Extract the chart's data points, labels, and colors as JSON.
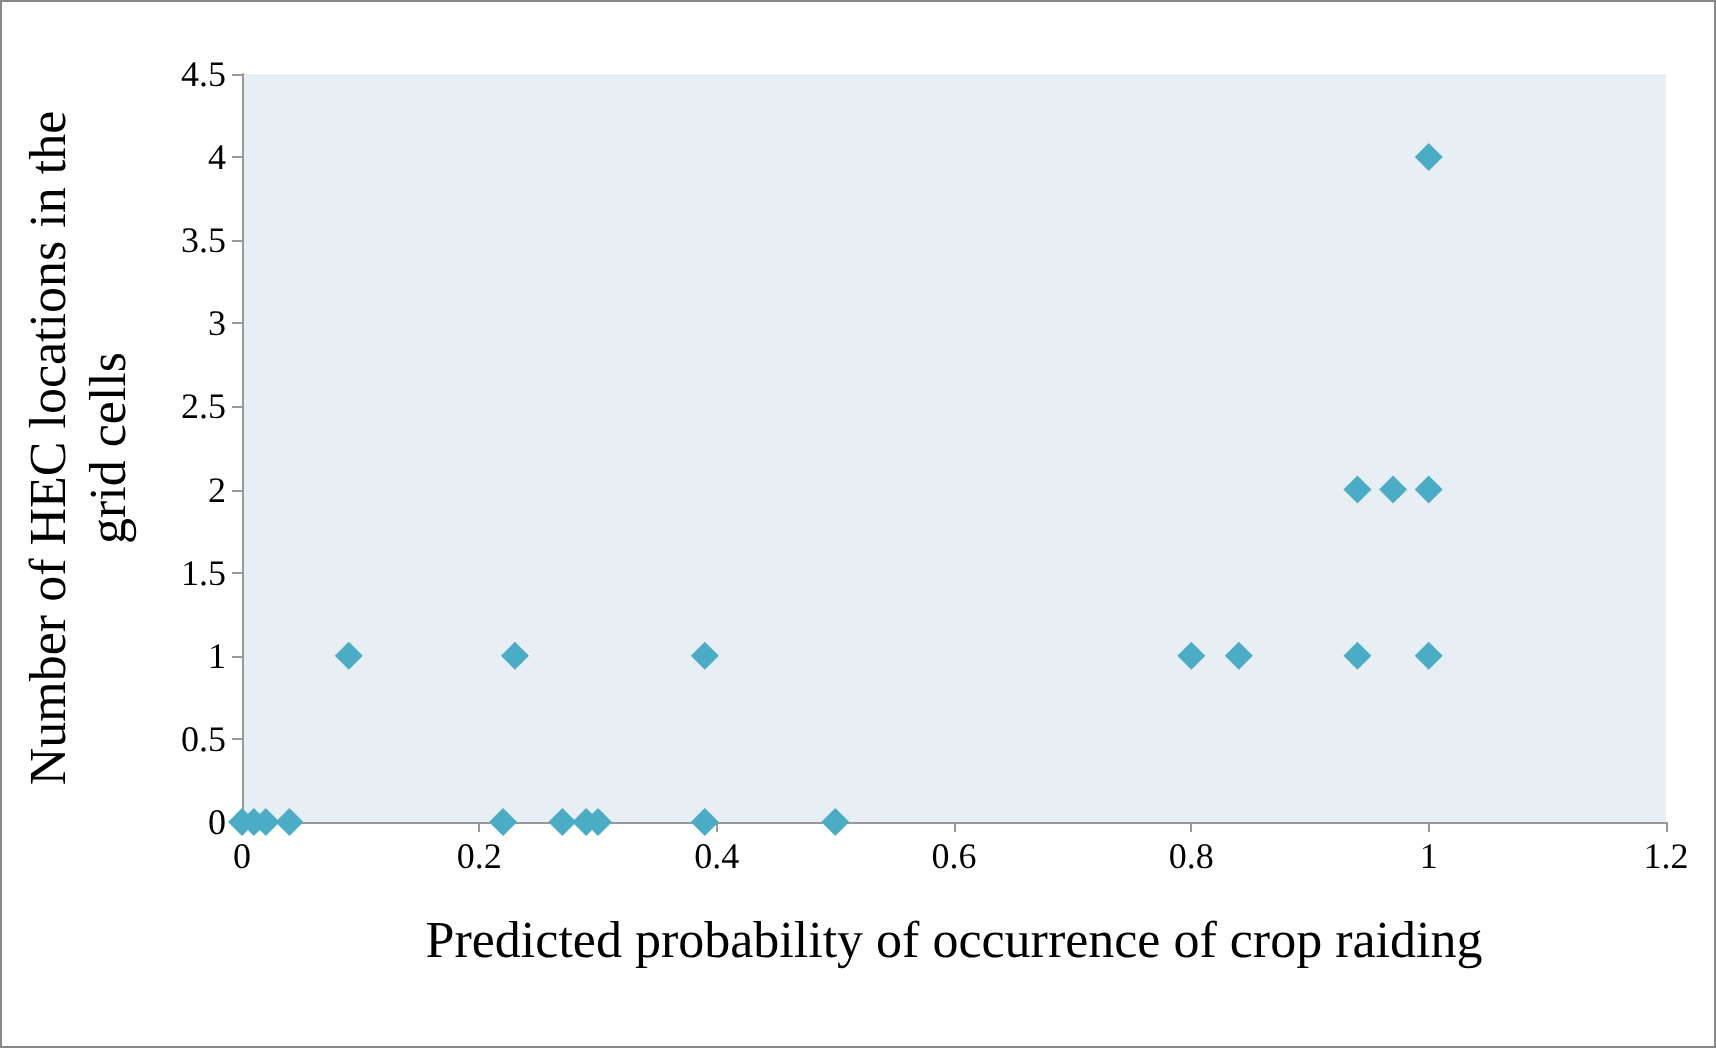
{
  "chart_data": {
    "type": "scatter",
    "xlabel": "Predicted probability of occurrence of crop raiding",
    "ylabel": "Number of HEC locations in the grid cells",
    "x": [
      0,
      0.01,
      0.02,
      0.04,
      0.22,
      0.27,
      0.29,
      0.3,
      0.39,
      0.5,
      0.09,
      0.23,
      0.39,
      0.8,
      0.84,
      0.94,
      1.0,
      0.94,
      0.97,
      1.0,
      1.0
    ],
    "series": [
      {
        "color": "#4bacc6",
        "values": [
          0,
          0,
          0,
          0,
          0,
          0,
          0,
          0,
          0,
          0,
          1,
          1,
          1,
          1,
          1,
          1,
          1,
          2,
          2,
          2,
          4
        ]
      }
    ],
    "xlim": [
      0,
      1.2
    ],
    "xticks": [
      0,
      0.2,
      0.4,
      0.6,
      0.8,
      1,
      1.2
    ],
    "ylim": [
      0,
      4.5
    ],
    "yticks": [
      0,
      0.5,
      1,
      1.5,
      2,
      2.5,
      3,
      3.5,
      4,
      4.5
    ],
    "marker": "diamond"
  }
}
